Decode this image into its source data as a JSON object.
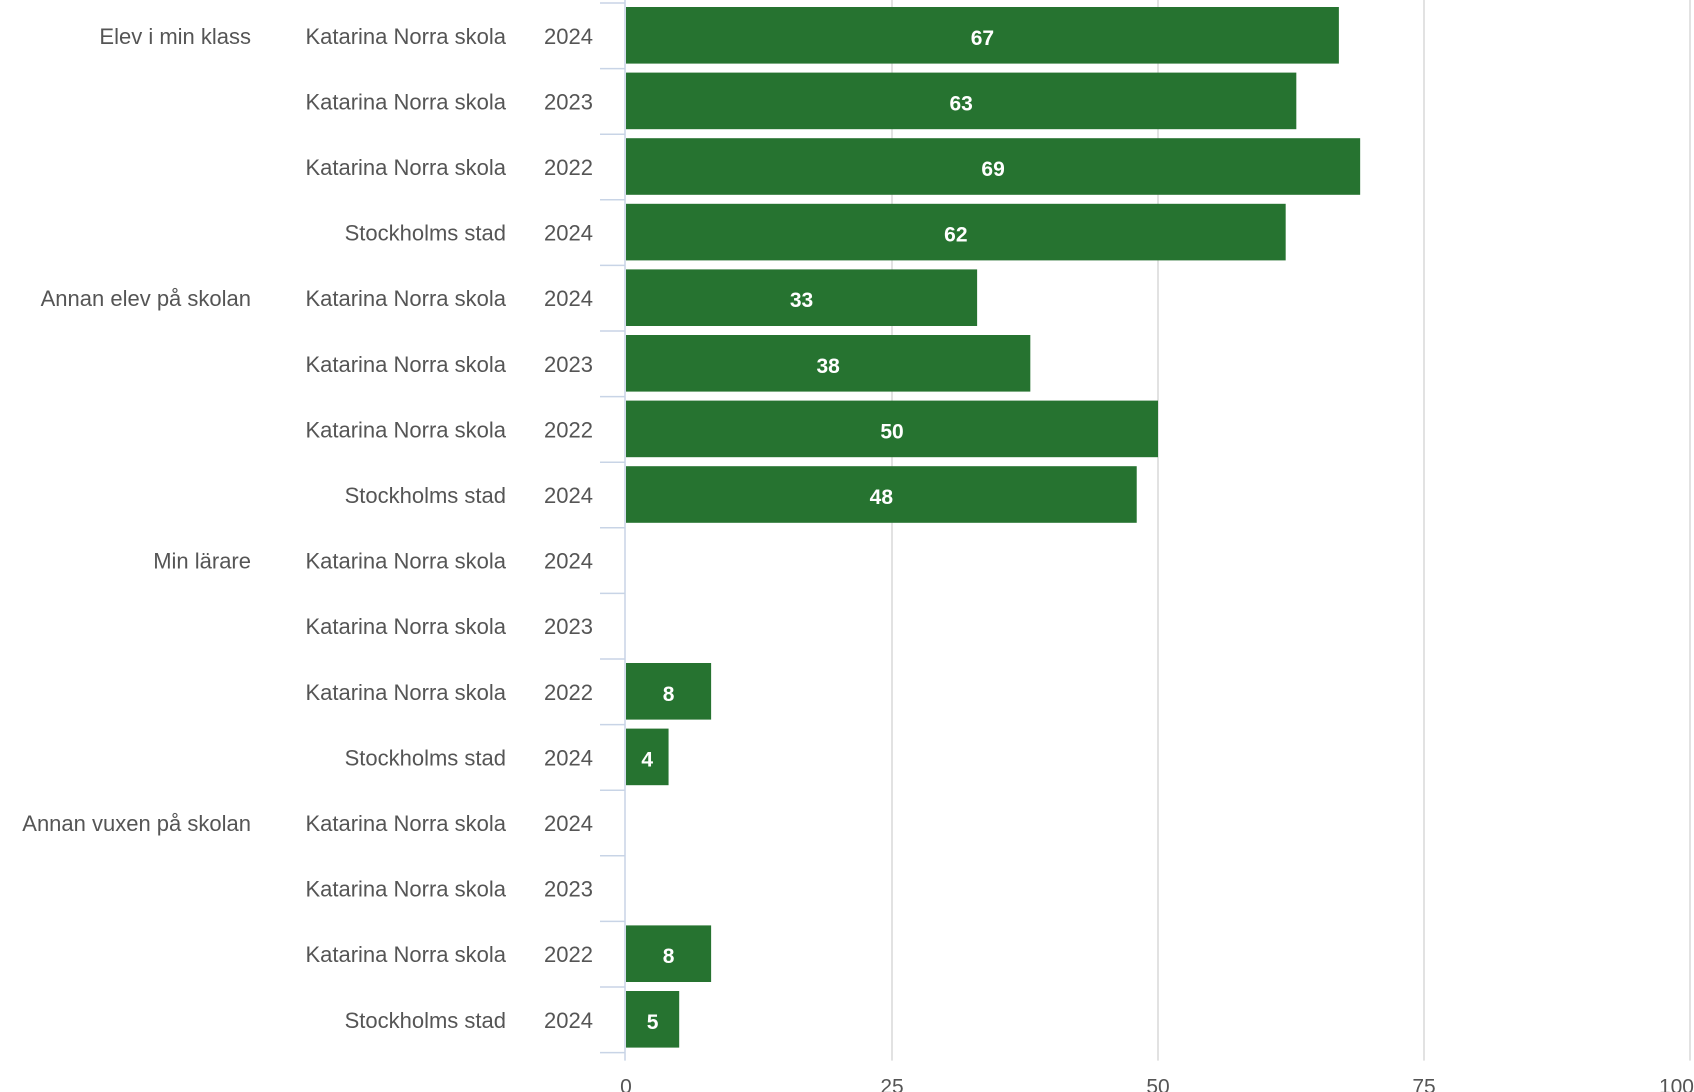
{
  "chart_data": {
    "type": "bar",
    "orientation": "horizontal",
    "xlim": [
      0,
      100
    ],
    "x_ticks": [
      "0",
      "25",
      "50",
      "75",
      "100"
    ],
    "grid": true,
    "bar_color": "#267330",
    "rows": [
      {
        "group": "Elev i min klass",
        "entity": "Katarina Norra skola",
        "year": "2024",
        "value": 67,
        "label": "67"
      },
      {
        "group": "",
        "entity": "Katarina Norra skola",
        "year": "2023",
        "value": 63,
        "label": "63"
      },
      {
        "group": "",
        "entity": "Katarina Norra skola",
        "year": "2022",
        "value": 69,
        "label": "69"
      },
      {
        "group": "",
        "entity": "Stockholms stad",
        "year": "2024",
        "value": 62,
        "label": "62"
      },
      {
        "group": "Annan elev på skolan",
        "entity": "Katarina Norra skola",
        "year": "2024",
        "value": 33,
        "label": "33"
      },
      {
        "group": "",
        "entity": "Katarina Norra skola",
        "year": "2023",
        "value": 38,
        "label": "38"
      },
      {
        "group": "",
        "entity": "Katarina Norra skola",
        "year": "2022",
        "value": 50,
        "label": "50"
      },
      {
        "group": "",
        "entity": "Stockholms stad",
        "year": "2024",
        "value": 48,
        "label": "48"
      },
      {
        "group": "Min lärare",
        "entity": "Katarina Norra skola",
        "year": "2024",
        "value": null,
        "label": ""
      },
      {
        "group": "",
        "entity": "Katarina Norra skola",
        "year": "2023",
        "value": null,
        "label": ""
      },
      {
        "group": "",
        "entity": "Katarina Norra skola",
        "year": "2022",
        "value": 8,
        "label": "8"
      },
      {
        "group": "",
        "entity": "Stockholms stad",
        "year": "2024",
        "value": 4,
        "label": "4"
      },
      {
        "group": "Annan vuxen på skolan",
        "entity": "Katarina Norra skola",
        "year": "2024",
        "value": null,
        "label": ""
      },
      {
        "group": "",
        "entity": "Katarina Norra skola",
        "year": "2023",
        "value": null,
        "label": ""
      },
      {
        "group": "",
        "entity": "Katarina Norra skola",
        "year": "2022",
        "value": 8,
        "label": "8"
      },
      {
        "group": "",
        "entity": "Stockholms stad",
        "year": "2024",
        "value": 5,
        "label": "5"
      }
    ]
  }
}
